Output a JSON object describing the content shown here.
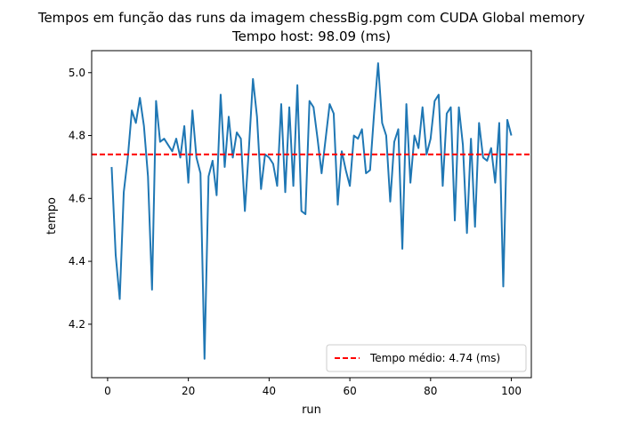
{
  "chart_data": {
    "type": "line",
    "title": "Tempos em função das runs da imagem chessBig.pgm com CUDA Global memory",
    "subtitle": "Tempo host: 98.09 (ms)",
    "xlabel": "run",
    "ylabel": "tempo",
    "xlim": [
      -3.95,
      104.95
    ],
    "ylim": [
      4.03,
      5.07
    ],
    "xticks": [
      0,
      20,
      40,
      60,
      80,
      100
    ],
    "xtick_labels": [
      "0",
      "20",
      "40",
      "60",
      "80",
      "100"
    ],
    "yticks": [
      4.2,
      4.4,
      4.6,
      4.8,
      5.0
    ],
    "ytick_labels": [
      "4.2",
      "4.4",
      "4.6",
      "4.8",
      "5.0"
    ],
    "grid": false,
    "legend_position": "lower-right",
    "series": [
      {
        "color": "#1f77b4",
        "x": [
          1,
          2,
          3,
          4,
          5,
          6,
          7,
          8,
          9,
          10,
          11,
          12,
          13,
          14,
          15,
          16,
          17,
          18,
          19,
          20,
          21,
          22,
          23,
          24,
          25,
          26,
          27,
          28,
          29,
          30,
          31,
          32,
          33,
          34,
          35,
          36,
          37,
          38,
          39,
          40,
          41,
          42,
          43,
          44,
          45,
          46,
          47,
          48,
          49,
          50,
          51,
          52,
          53,
          54,
          55,
          56,
          57,
          58,
          59,
          60,
          61,
          62,
          63,
          64,
          65,
          66,
          67,
          68,
          69,
          70,
          71,
          72,
          73,
          74,
          75,
          76,
          77,
          78,
          79,
          80,
          81,
          82,
          83,
          84,
          85,
          86,
          87,
          88,
          89,
          90,
          91,
          92,
          93,
          94,
          95,
          96,
          97,
          98,
          99,
          100
        ],
        "values": [
          4.7,
          4.42,
          4.28,
          4.62,
          4.73,
          4.88,
          4.84,
          4.92,
          4.83,
          4.67,
          4.31,
          4.91,
          4.78,
          4.79,
          4.77,
          4.75,
          4.79,
          4.73,
          4.83,
          4.65,
          4.88,
          4.73,
          4.68,
          4.09,
          4.67,
          4.72,
          4.61,
          4.93,
          4.7,
          4.86,
          4.73,
          4.81,
          4.79,
          4.56,
          4.76,
          4.98,
          4.86,
          4.63,
          4.74,
          4.73,
          4.71,
          4.64,
          4.9,
          4.62,
          4.89,
          4.64,
          4.96,
          4.56,
          4.55,
          4.91,
          4.89,
          4.79,
          4.68,
          4.79,
          4.9,
          4.87,
          4.58,
          4.75,
          4.69,
          4.64,
          4.8,
          4.79,
          4.82,
          4.68,
          4.69,
          4.87,
          5.03,
          4.84,
          4.8,
          4.59,
          4.78,
          4.82,
          4.44,
          4.9,
          4.65,
          4.8,
          4.76,
          4.89,
          4.74,
          4.79,
          4.91,
          4.93,
          4.64,
          4.87,
          4.89,
          4.53,
          4.89,
          4.77,
          4.49,
          4.79,
          4.51,
          4.84,
          4.73,
          4.72,
          4.76,
          4.65,
          4.84,
          4.32,
          4.85,
          4.8
        ]
      }
    ],
    "reference_line": {
      "y": 4.74,
      "color": "#ff0000",
      "style": "dashed",
      "label": "Tempo médio: 4.74 (ms)"
    }
  }
}
